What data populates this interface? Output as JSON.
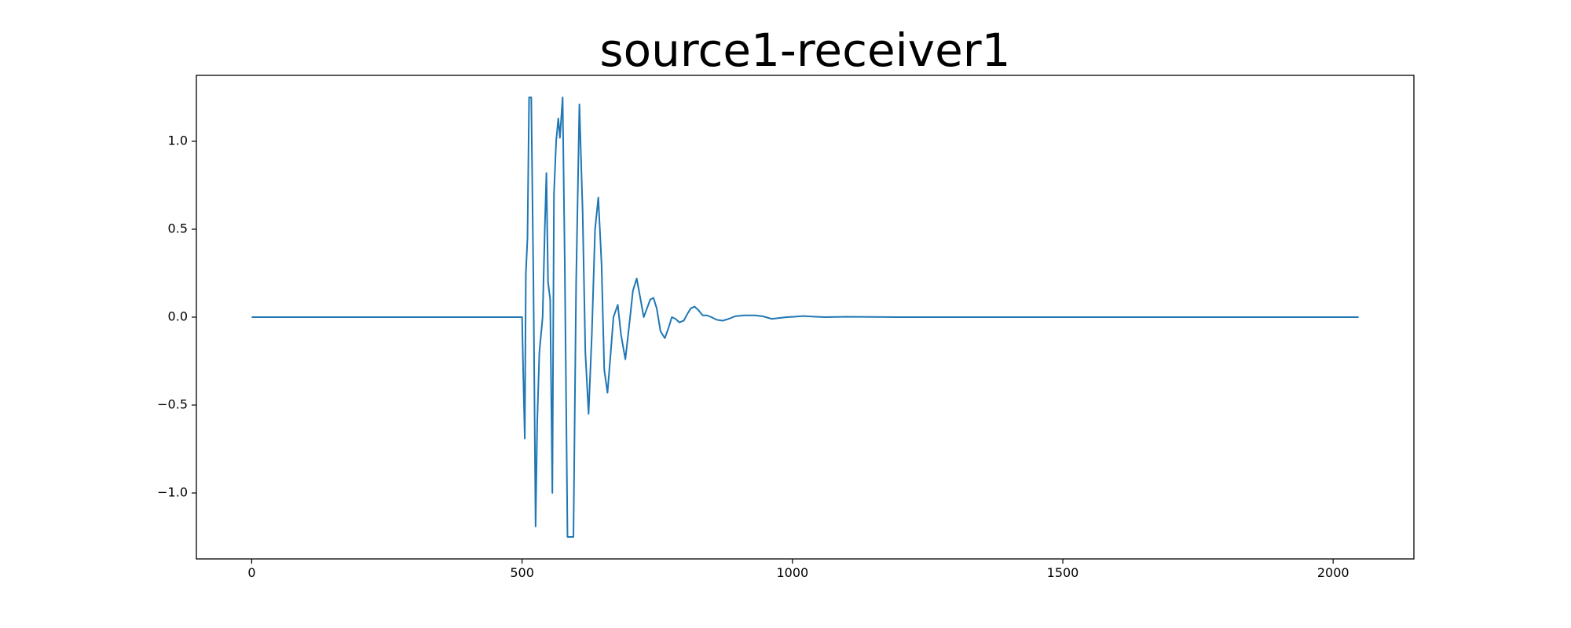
{
  "chart_data": {
    "type": "line",
    "title": "source1-receiver1",
    "x": [
      0,
      500,
      502,
      505,
      507,
      510,
      513,
      517,
      521,
      525,
      528,
      532,
      538,
      542,
      545,
      548,
      552,
      556,
      559,
      563,
      567,
      570,
      575,
      579,
      584,
      595,
      600,
      606,
      612,
      617,
      623,
      629,
      635,
      641,
      647,
      652,
      658,
      664,
      669,
      677,
      683,
      691,
      698,
      705,
      712,
      718,
      725,
      731,
      737,
      743,
      749,
      756,
      764,
      771,
      777,
      784,
      791,
      799,
      806,
      812,
      819,
      826,
      834,
      842,
      850,
      860,
      871,
      882,
      894,
      910,
      930,
      945,
      962,
      975,
      990,
      1005,
      1020,
      1040,
      1060,
      1100,
      1200,
      2047
    ],
    "series": [
      {
        "color": "#1f77b4",
        "values": [
          0,
          0,
          -0.3,
          -0.69,
          0.25,
          0.45,
          1.25,
          1.25,
          0.2,
          -1.19,
          -0.6,
          -0.2,
          0,
          0.5,
          0.82,
          0.2,
          0.1,
          -1.0,
          0.7,
          1.0,
          1.13,
          1.02,
          1.25,
          0.3,
          -1.25,
          -1.25,
          0.2,
          1.21,
          0.6,
          -0.2,
          -0.55,
          -0.1,
          0.5,
          0.68,
          0.3,
          -0.3,
          -0.43,
          -0.2,
          0,
          0.07,
          -0.1,
          -0.24,
          -0.05,
          0.15,
          0.22,
          0.12,
          0,
          0.05,
          0.1,
          0.11,
          0.05,
          -0.08,
          -0.12,
          -0.06,
          0,
          -0.01,
          -0.03,
          -0.02,
          0.02,
          0.05,
          0.06,
          0.04,
          0.01,
          0.01,
          0,
          -0.015,
          -0.02,
          -0.01,
          0.005,
          0.01,
          0.01,
          0.005,
          -0.01,
          -0.005,
          0,
          0.003,
          0.006,
          0.003,
          0,
          0.002,
          0,
          0
        ]
      }
    ],
    "xlim": [
      -102.35,
      2149.35
    ],
    "ylim": [
      -1.375,
      1.375
    ],
    "xticks": [
      0,
      500,
      1000,
      1500,
      2000
    ],
    "yticks": [
      {
        "value": -1.0,
        "label": "−1.0"
      },
      {
        "value": -0.5,
        "label": "−0.5"
      },
      {
        "value": 0.0,
        "label": "0.0"
      },
      {
        "value": 0.5,
        "label": "0.5"
      },
      {
        "value": 1.0,
        "label": "1.0"
      }
    ],
    "grid": false
  }
}
